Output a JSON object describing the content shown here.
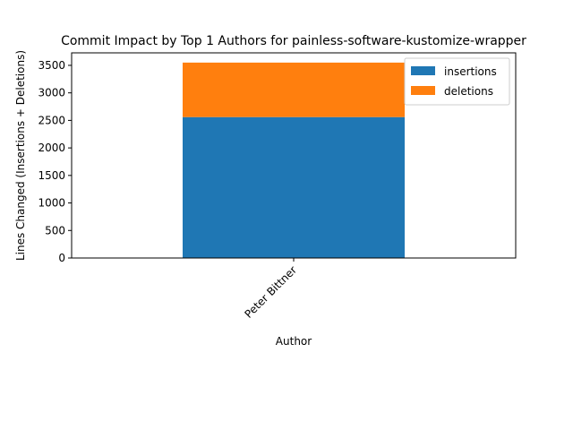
{
  "chart_data": {
    "type": "bar",
    "stacked": true,
    "title": "Commit Impact by Top 1 Authors for painless-software-kustomize-wrapper",
    "xlabel": "Author",
    "ylabel": "Lines Changed (Insertions + Deletions)",
    "categories": [
      "Peter Bittner"
    ],
    "series": [
      {
        "name": "insertions",
        "values": [
          2560
        ],
        "color": "#1f77b4"
      },
      {
        "name": "deletions",
        "values": [
          990
        ],
        "color": "#ff7f0e"
      }
    ],
    "ylim": [
      0,
      3727
    ],
    "yticks": [
      0,
      500,
      1000,
      1500,
      2000,
      2500,
      3000,
      3500
    ],
    "grid": false,
    "legend_position": "top-right"
  }
}
